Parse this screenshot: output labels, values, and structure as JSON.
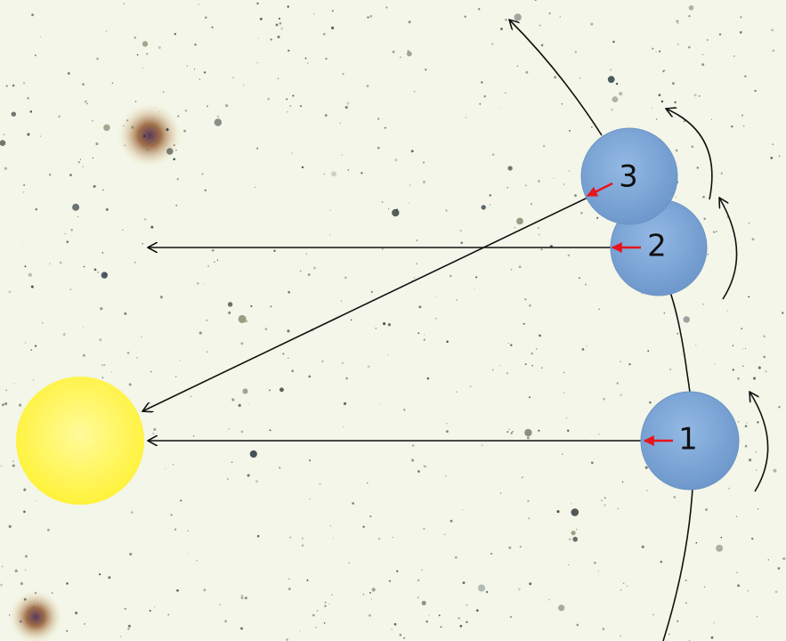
{
  "nodes": [
    {
      "label": "1"
    },
    {
      "label": "2"
    },
    {
      "label": "3"
    }
  ]
}
